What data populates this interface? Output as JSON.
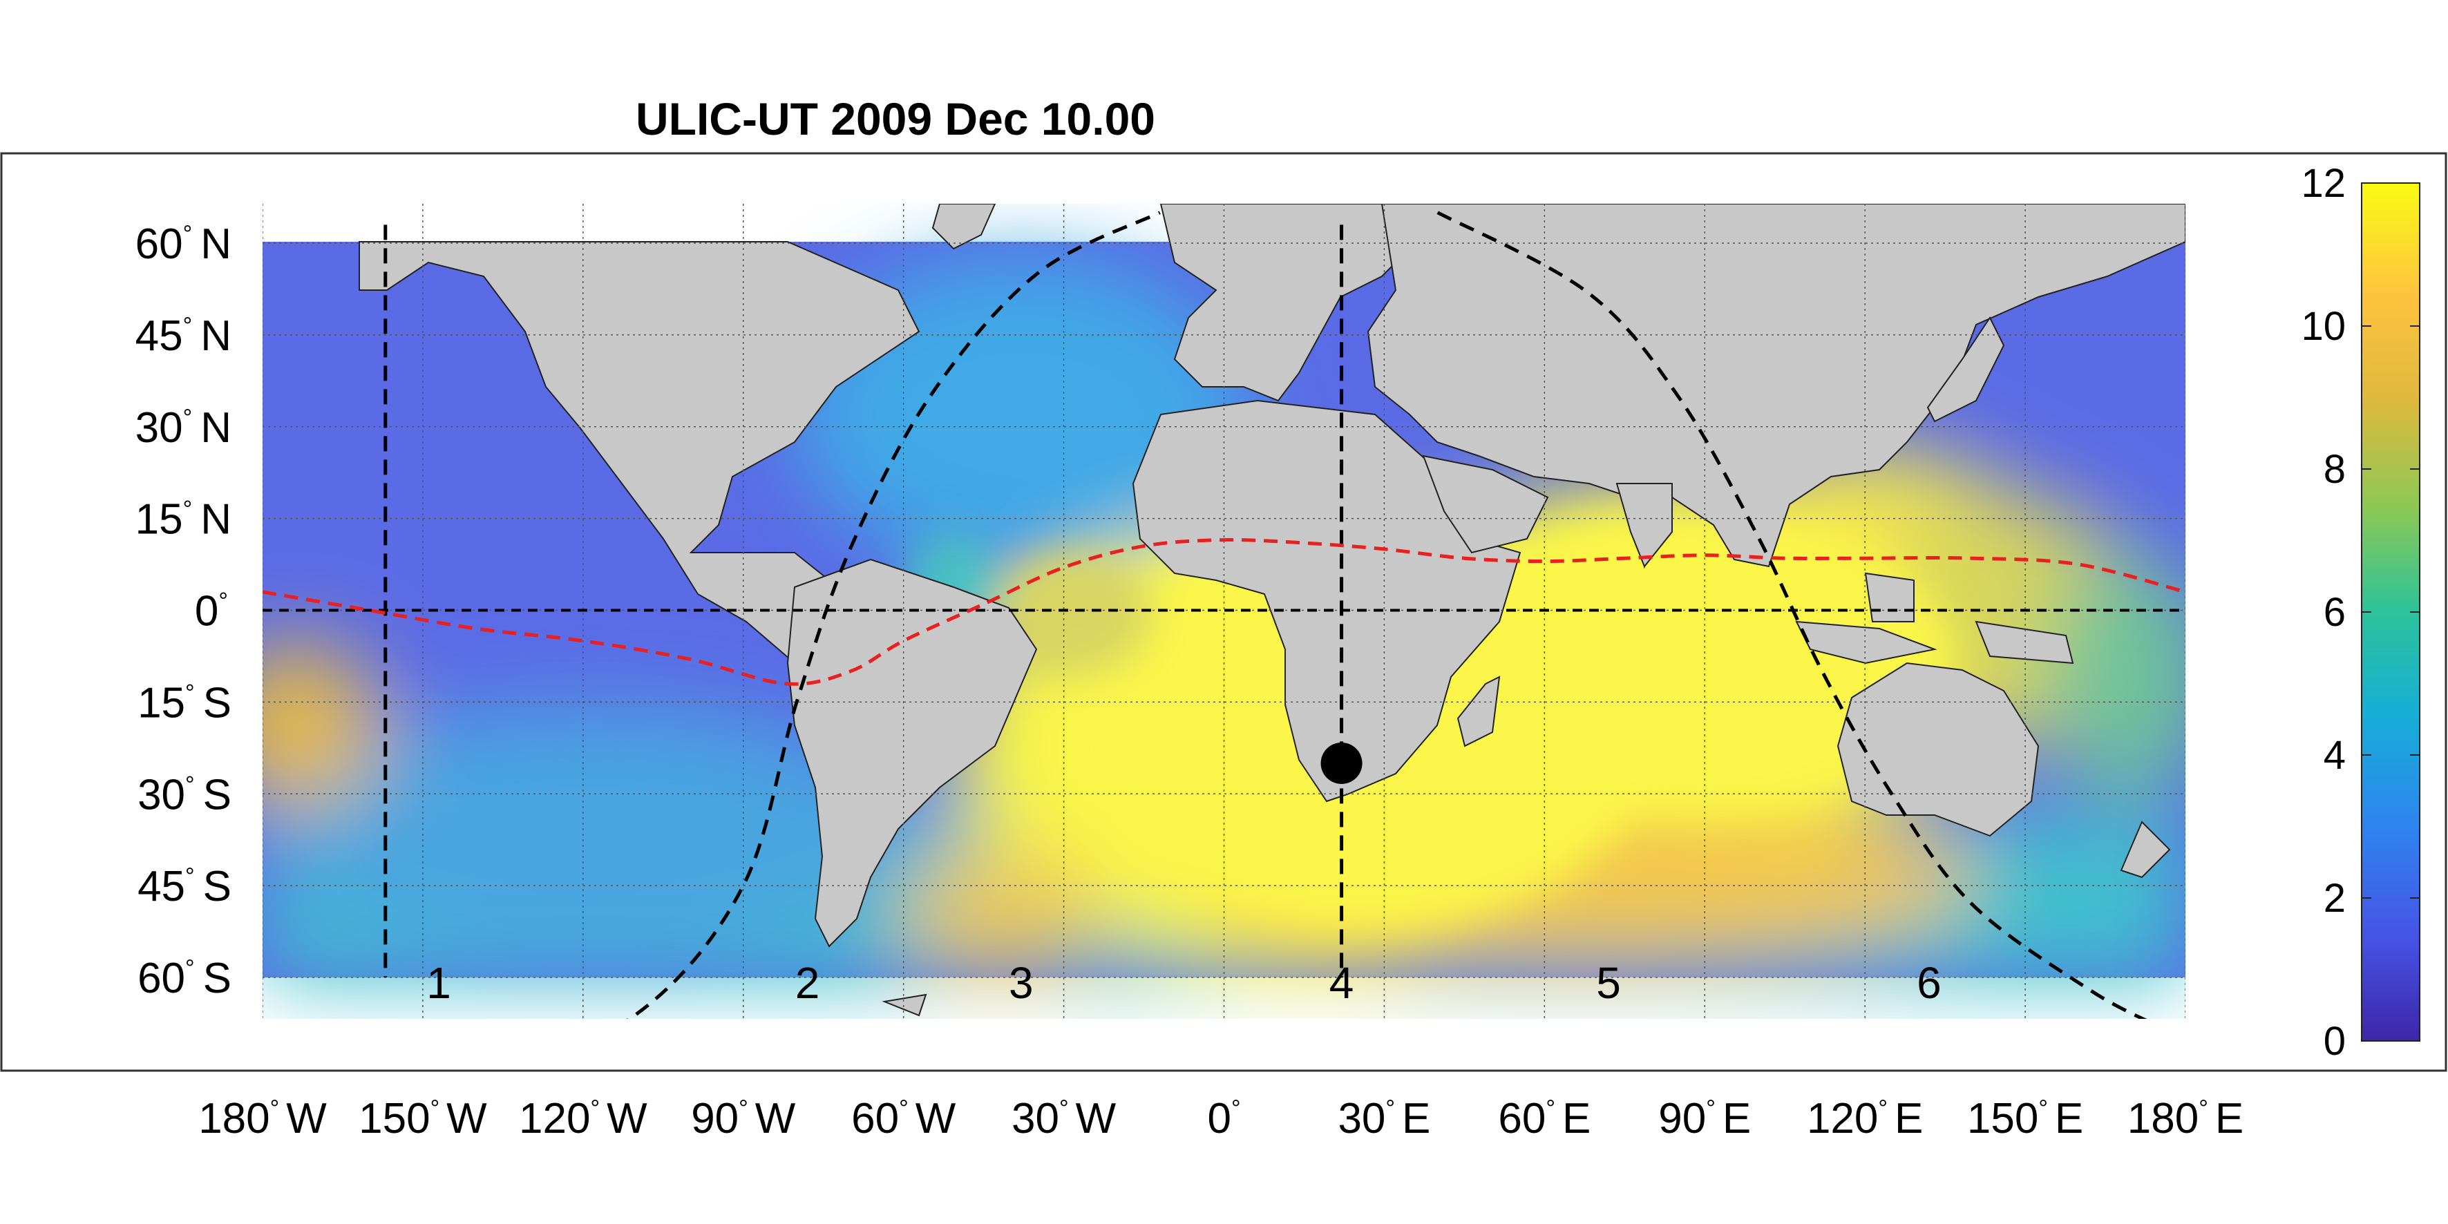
{
  "title": "ULIC-UT 2009 Dec 10.00",
  "map": {
    "lat_labels": [
      {
        "lat": 60,
        "value": "60",
        "hemi": "N"
      },
      {
        "lat": 45,
        "value": "45",
        "hemi": "N"
      },
      {
        "lat": 30,
        "value": "30",
        "hemi": "N"
      },
      {
        "lat": 15,
        "value": "15",
        "hemi": "N"
      },
      {
        "lat": 0,
        "value": "0",
        "hemi": ""
      },
      {
        "lat": -15,
        "value": "15",
        "hemi": "S"
      },
      {
        "lat": -30,
        "value": "30",
        "hemi": "S"
      },
      {
        "lat": -45,
        "value": "45",
        "hemi": "S"
      },
      {
        "lat": -60,
        "value": "60",
        "hemi": "S"
      }
    ],
    "lon_labels": [
      {
        "lon": -180,
        "value": "180",
        "hemi": "W"
      },
      {
        "lon": -150,
        "value": "150",
        "hemi": "W"
      },
      {
        "lon": -120,
        "value": "120",
        "hemi": "W"
      },
      {
        "lon": -90,
        "value": "90",
        "hemi": "W"
      },
      {
        "lon": -60,
        "value": "60",
        "hemi": "W"
      },
      {
        "lon": -30,
        "value": "30",
        "hemi": "W"
      },
      {
        "lon": 0,
        "value": "0",
        "hemi": ""
      },
      {
        "lon": 30,
        "value": "30",
        "hemi": "E"
      },
      {
        "lon": 60,
        "value": "60",
        "hemi": "E"
      },
      {
        "lon": 90,
        "value": "90",
        "hemi": "E"
      },
      {
        "lon": 120,
        "value": "120",
        "hemi": "E"
      },
      {
        "lon": 150,
        "value": "150",
        "hemi": "E"
      },
      {
        "lon": 180,
        "value": "180",
        "hemi": "E"
      }
    ],
    "region_labels": [
      {
        "text": "1",
        "lon": -147
      },
      {
        "text": "2",
        "lon": -78
      },
      {
        "text": "3",
        "lon": -38
      },
      {
        "text": "4",
        "lon": 22
      },
      {
        "text": "5",
        "lon": 72
      },
      {
        "text": "6",
        "lon": 132
      }
    ],
    "meridian_line_lon": [
      -157,
      22
    ],
    "equator_line_lat": 0,
    "terminator_curves": [
      {
        "points": [
          [
            -140,
            -77
          ],
          [
            -110,
            -66
          ],
          [
            -90,
            -45
          ],
          [
            -80,
            -15
          ],
          [
            -70,
            10
          ],
          [
            -55,
            35
          ],
          [
            -35,
            55
          ],
          [
            -12,
            65
          ]
        ]
      },
      {
        "points": [
          [
            40,
            65
          ],
          [
            68,
            52
          ],
          [
            85,
            35
          ],
          [
            100,
            12
          ],
          [
            112,
            -10
          ],
          [
            125,
            -30
          ],
          [
            140,
            -48
          ],
          [
            162,
            -62
          ],
          [
            175,
            -68
          ]
        ]
      }
    ],
    "magnetic_equator": [
      [
        -180,
        3
      ],
      [
        -160,
        0
      ],
      [
        -140,
        -3
      ],
      [
        -120,
        -5
      ],
      [
        -100,
        -8
      ],
      [
        -82,
        -12
      ],
      [
        -70,
        -10
      ],
      [
        -60,
        -5
      ],
      [
        -45,
        1
      ],
      [
        -30,
        7
      ],
      [
        -15,
        10.5
      ],
      [
        0,
        11.5
      ],
      [
        15,
        11
      ],
      [
        30,
        10
      ],
      [
        45,
        8.5
      ],
      [
        60,
        8
      ],
      [
        75,
        8.5
      ],
      [
        90,
        9
      ],
      [
        105,
        8.5
      ],
      [
        120,
        8.5
      ],
      [
        140,
        8.5
      ],
      [
        160,
        7.5
      ],
      [
        180,
        3
      ]
    ],
    "dot": {
      "lon": 22,
      "lat": -25
    },
    "colors": {
      "land": "#c8c8c8",
      "equator_line": "#000000",
      "magnetic_equator": "#e8201f",
      "dot": "#000000"
    }
  },
  "colorbar": {
    "ticks": [
      "0",
      "2",
      "4",
      "6",
      "8",
      "10",
      "12"
    ],
    "min": 0,
    "max": 12,
    "colors": [
      "#3e26a8",
      "#4653e6",
      "#2f84f0",
      "#16aed7",
      "#2cc29a",
      "#8bc856",
      "#e0b93d",
      "#fec33e",
      "#f9fb14"
    ]
  }
}
